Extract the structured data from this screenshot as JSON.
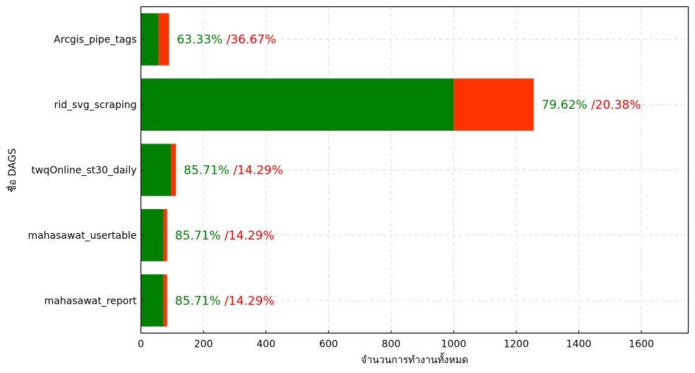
{
  "chart_data": {
    "type": "bar",
    "orientation": "horizontal",
    "stacked": true,
    "categories": [
      "Arcgis_pipe_tags",
      "rid_svg_scraping",
      "twqOnline_st30_daily",
      "mahasawat_usertable",
      "mahasawat_report"
    ],
    "series": [
      {
        "color": "#008000",
        "values": [
          57,
          1000,
          96,
          72,
          72
        ]
      },
      {
        "color": "#ff3300",
        "values": [
          33,
          256,
          16,
          12,
          12
        ]
      }
    ],
    "annotations": [
      {
        "success": "63.33%",
        "fail": "/36.67%"
      },
      {
        "success": "79.62%",
        "fail": "/20.38%"
      },
      {
        "success": "85.71%",
        "fail": "/14.29%"
      },
      {
        "success": "85.71%",
        "fail": "/14.29%"
      },
      {
        "success": "85.71%",
        "fail": "/14.29%"
      }
    ],
    "annotation_colors": {
      "success": "#008000",
      "fail": "#ff0000"
    },
    "xlabel": "จำนวนการทำงานทั้งหมด",
    "ylabel": "ชื่อ DAGS",
    "xlim": [
      0,
      1750
    ],
    "xticks": [
      0,
      200,
      400,
      600,
      800,
      1000,
      1200,
      1400,
      1600
    ],
    "grid": true
  }
}
